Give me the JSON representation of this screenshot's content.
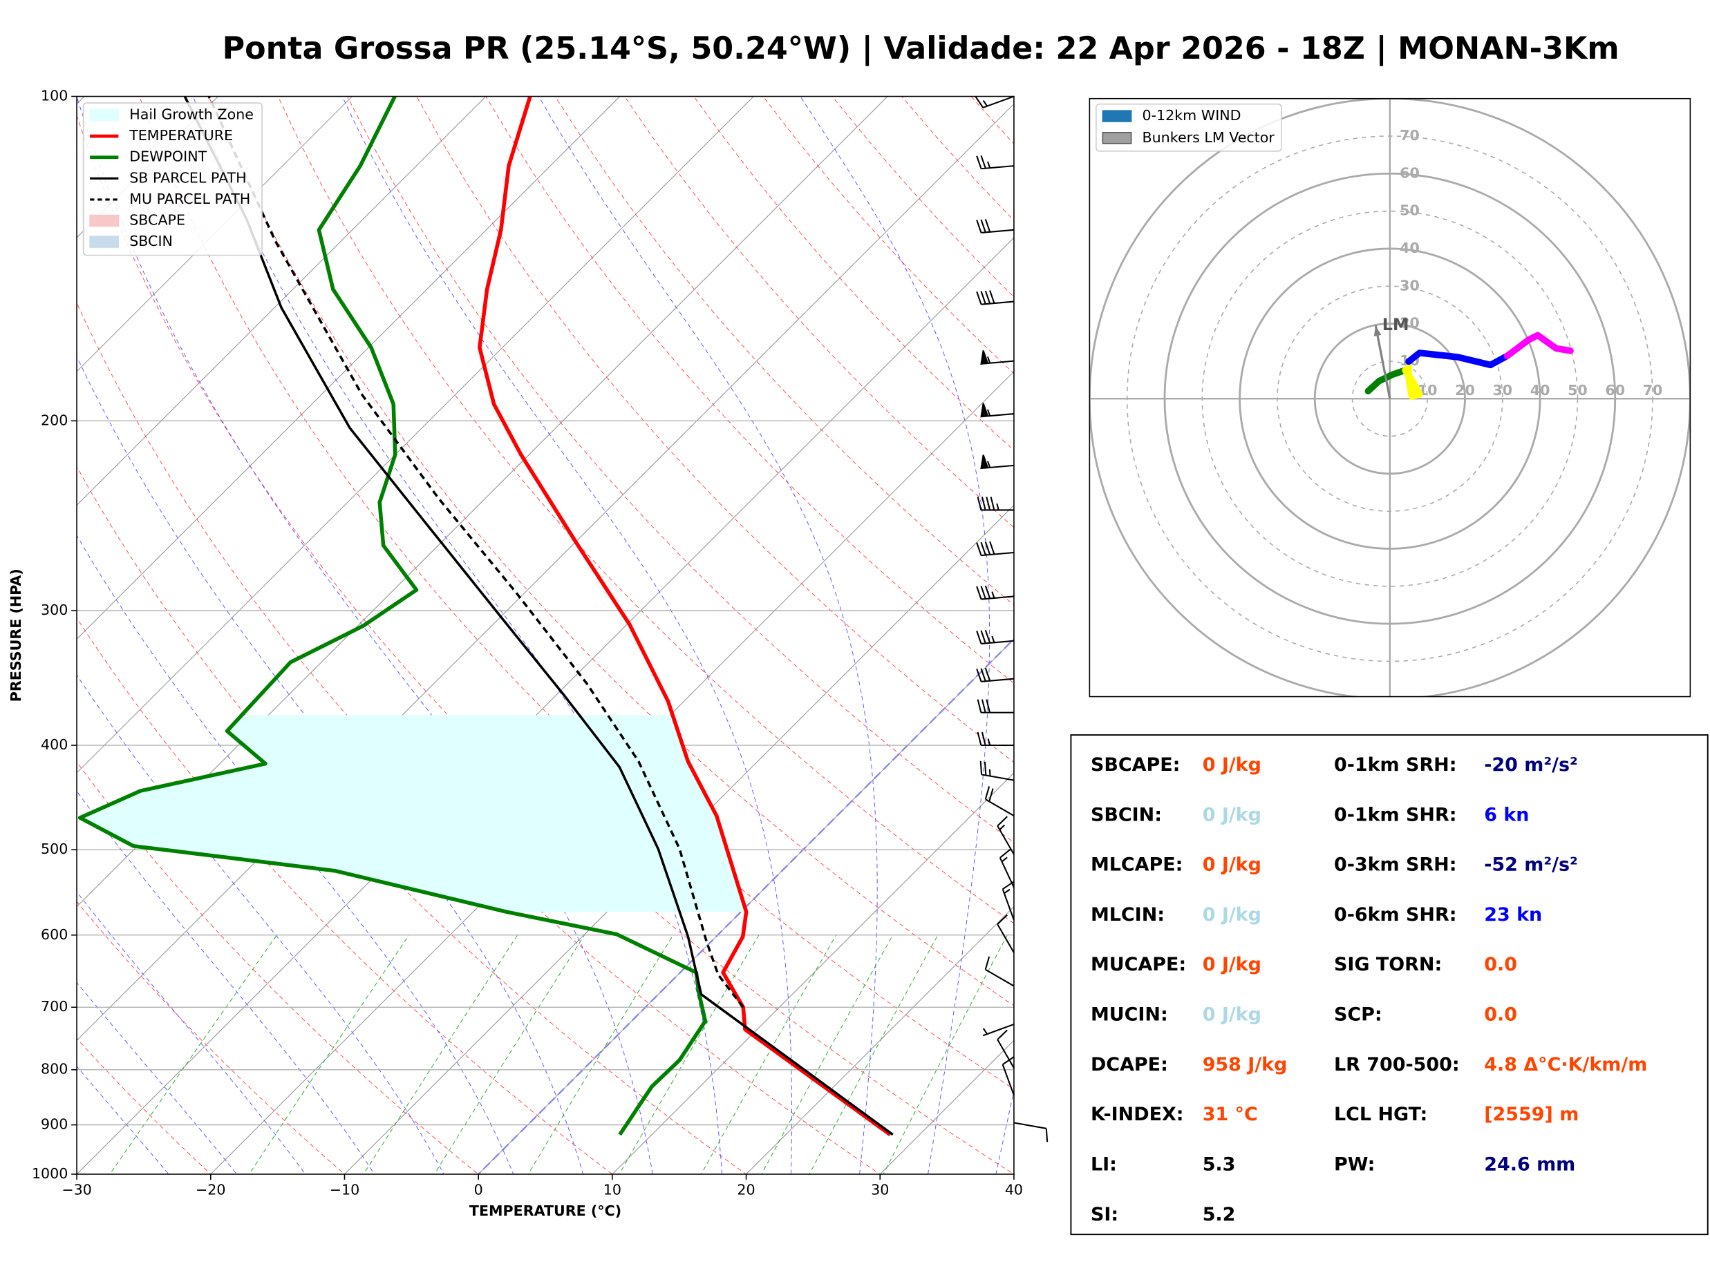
{
  "title": "Ponta Grossa PR (25.14°S, 50.24°W) | Validade: 22 Apr 2026 - 18Z | MONAN-3Km",
  "chart_data": [
    {
      "type": "skewt",
      "x_label": "TEMPERATURE (°C)",
      "y_label": "PRESSURE (HPA)",
      "xlim": [
        -30,
        40
      ],
      "ylim": [
        1000,
        100
      ],
      "log_y": true,
      "xticks": [
        {
          "value": -30,
          "label": "−30"
        },
        {
          "value": -20,
          "label": "−20"
        },
        {
          "value": -10,
          "label": "−10"
        },
        0,
        10,
        20,
        30,
        40
      ],
      "yticks": [
        1000,
        900,
        800,
        700,
        600,
        500,
        400,
        300,
        200,
        100
      ],
      "grid": true,
      "legend_position": "upper left",
      "series": [
        {
          "name": "TEMPERATURE",
          "color": "#ff0000",
          "style": "solid",
          "pressure": [
            919,
            734,
            700,
            650,
            602,
            571,
            465,
            414,
            364,
            309,
            259,
            215,
            193,
            171,
            151,
            133,
            116,
            100
          ],
          "values": [
            27.8,
            9.1,
            7.3,
            3.2,
            2.0,
            0.4,
            -9.0,
            -15.2,
            -21.2,
            -29.8,
            -40,
            -50.6,
            -56.4,
            -61.7,
            -65.5,
            -68.9,
            -73.1,
            -76.7
          ]
        },
        {
          "name": "DEWPOINT",
          "color": "#008000",
          "style": "solid",
          "pressure": [
            919,
            829,
            784,
            721,
            677,
            650,
            599,
            571,
            523,
            496,
            467,
            441,
            416,
            388,
            335,
            310,
            287,
            261,
            238,
            215,
            193,
            171,
            151,
            133,
            116,
            100
          ],
          "values": [
            7.6,
            6.4,
            6.5,
            5.5,
            2.8,
            1.2,
            -7.6,
            -17.5,
            -33.4,
            -50.3,
            -56.4,
            -53.9,
            -46.6,
            -51.9,
            -52.3,
            -49.6,
            -48.3,
            -54.1,
            -57.6,
            -60.0,
            -63.9,
            -69.8,
            -77,
            -82.5,
            -84.2,
            -86.8
          ]
        },
        {
          "name": "SB PARCEL PATH",
          "color": "#000000",
          "style": "solid",
          "pressure": [
            919,
            734,
            681,
            602,
            499,
            419,
            360,
            302,
            250,
            203,
            157,
            130,
            100
          ],
          "values": [
            28.0,
            9.4,
            3.2,
            -2.1,
            -10.9,
            -19.9,
            -29.3,
            -40.4,
            -52.3,
            -65.4,
            -79.5,
            -88.7,
            -102.5
          ]
        },
        {
          "name": "MU PARCEL PATH",
          "color": "#000000",
          "style": "dashed",
          "pressure": [
            700,
            653,
            609,
            499,
            414,
            351,
            288,
            236,
            189,
            136,
            100
          ],
          "values": [
            7.3,
            3.0,
            -0.3,
            -9.3,
            -18.9,
            -28.5,
            -40.8,
            -53.5,
            -67,
            -85,
            -100.7
          ]
        }
      ],
      "areas": [
        {
          "name": "Hail Growth Zone",
          "color": "#e0ffff",
          "pressure_range": [
            571,
            375
          ]
        },
        {
          "name": "SBCAPE",
          "color": "#f8c8c8"
        },
        {
          "name": "SBCIN",
          "color": "#c8dbec"
        }
      ],
      "wind_barbs": {
        "pressure": [
          100,
          116,
          133,
          155,
          176,
          197,
          220,
          242,
          265,
          291,
          320,
          347,
          373,
          400,
          431,
          465,
          505,
          542,
          581,
          623,
          669,
          726,
          797,
          845,
          896
        ],
        "speed": [
          15,
          25,
          30,
          40,
          55,
          55,
          55,
          45,
          40,
          35,
          35,
          30,
          30,
          25,
          25,
          20,
          15,
          15,
          15,
          10,
          10,
          5,
          10,
          10,
          10
        ],
        "direction": [
          250,
          265,
          265,
          265,
          265,
          265,
          265,
          270,
          265,
          265,
          265,
          265,
          270,
          270,
          280,
          300,
          330,
          335,
          340,
          330,
          300,
          250,
          330,
          340,
          100
        ]
      }
    },
    {
      "type": "hodograph",
      "rlim": [
        0,
        80
      ],
      "rticks": [
        10,
        20,
        30,
        40,
        50,
        60,
        70
      ],
      "legend": [
        {
          "name": "0-12km WIND",
          "color": "#1f77b4"
        },
        {
          "name": "Bunkers LM Vector",
          "color": "#a0a0a0"
        }
      ],
      "series": [
        {
          "color": "#008000",
          "u": [
            -5.8,
            -2.9,
            0.6,
            4.1
          ],
          "v": [
            2.0,
            4.7,
            6.4,
            7.6
          ]
        },
        {
          "color": "#ffff00",
          "u": [
            4.1,
            6.4,
            7.9,
            5.8,
            5,
            5
          ],
          "v": [
            7.6,
            4.1,
            1.2,
            0.6,
            5.5,
            8.5
          ]
        },
        {
          "color": "#0000ff",
          "u": [
            5,
            7.9,
            18.1,
            26.8,
            31.2
          ],
          "v": [
            9.9,
            12.2,
            11.1,
            9.0,
            11.4
          ]
        },
        {
          "color": "#ff00ff",
          "u": [
            31.2,
            37,
            39.4,
            44.3,
            48.1
          ],
          "v": [
            11.4,
            15.7,
            16.9,
            13.4,
            12.8
          ]
        }
      ],
      "bunkers_lm": {
        "label": "LM",
        "u": -3.8,
        "v": 19.5,
        "color": "#808080"
      }
    }
  ],
  "indices": {
    "left": [
      {
        "label": "SBCAPE:",
        "value": "0 J/kg",
        "color": "#ff4500"
      },
      {
        "label": "SBCIN:",
        "value": "0 J/kg",
        "color": "#add8e6"
      },
      {
        "label": "MLCAPE:",
        "value": "0 J/kg",
        "color": "#ff4500"
      },
      {
        "label": "MLCIN:",
        "value": "0 J/kg",
        "color": "#add8e6"
      },
      {
        "label": "MUCAPE:",
        "value": "0 J/kg",
        "color": "#ff4500"
      },
      {
        "label": "MUCIN:",
        "value": "0 J/kg",
        "color": "#add8e6"
      },
      {
        "label": "DCAPE:",
        "value": "958 J/kg",
        "color": "#ff4500"
      },
      {
        "label": "K-INDEX:",
        "value": "31 °C",
        "color": "#ff4500"
      },
      {
        "label": "LI:",
        "value": "5.3",
        "color": "#000000"
      },
      {
        "label": "SI:",
        "value": "5.2",
        "color": "#000000"
      }
    ],
    "right": [
      {
        "label": "0-1km SRH:",
        "value": "-20 m²/s²",
        "color": "#000080"
      },
      {
        "label": "0-1km SHR:",
        "value": "6 kn",
        "color": "#0000ff"
      },
      {
        "label": "0-3km SRH:",
        "value": "-52 m²/s²",
        "color": "#000080"
      },
      {
        "label": "0-6km SHR:",
        "value": "23 kn",
        "color": "#0000ff"
      },
      {
        "label": "SIG TORN:",
        "value": "0.0",
        "color": "#ff4500"
      },
      {
        "label": "SCP:",
        "value": "0.0",
        "color": "#ff4500"
      },
      {
        "label": "LR 700-500:",
        "value": "4.8 Δ°C·K/km/m",
        "color": "#ff4500"
      },
      {
        "label": "LCL HGT:",
        "value": "[2559] m",
        "color": "#ff4500"
      },
      {
        "label": "PW:",
        "value": "24.6 mm",
        "color": "#000080"
      }
    ]
  }
}
